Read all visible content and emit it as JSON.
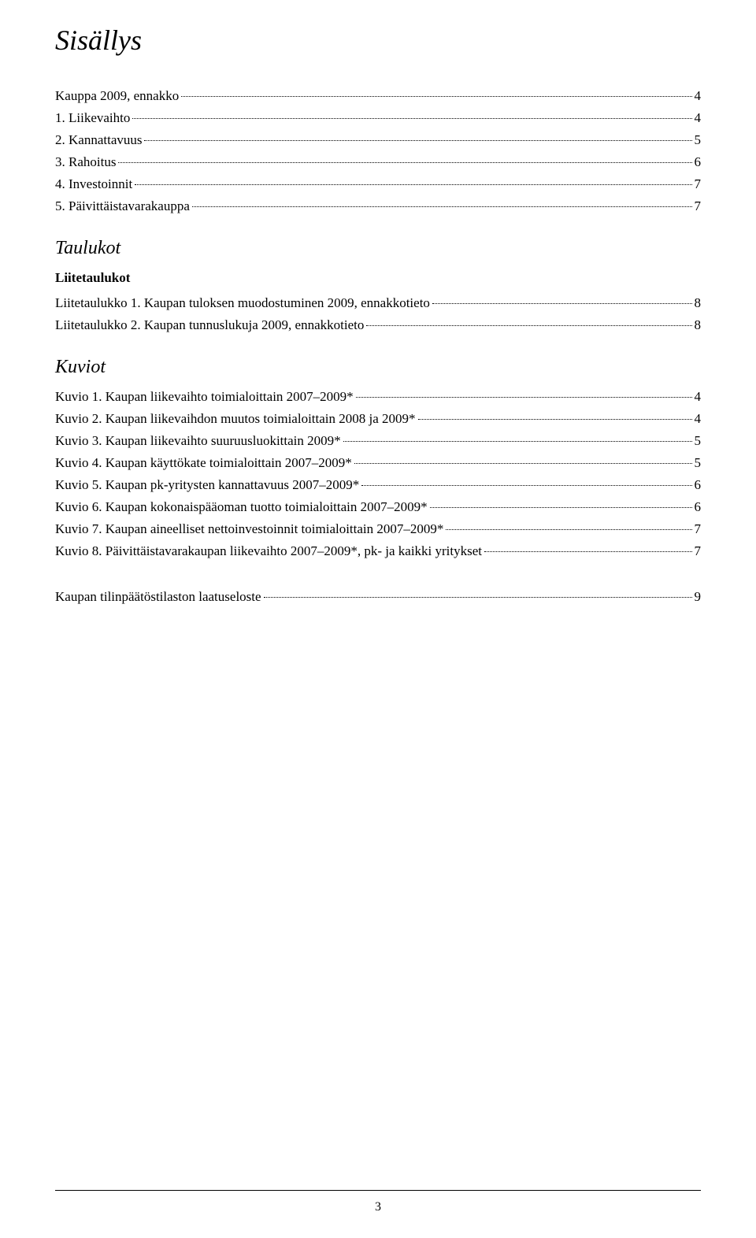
{
  "title": "Sisällys",
  "main_entries": [
    {
      "label": "Kauppa 2009, ennakko",
      "page": "4"
    },
    {
      "label": "1. Liikevaihto",
      "page": "4"
    },
    {
      "label": "2. Kannattavuus",
      "page": "5"
    },
    {
      "label": "3. Rahoitus",
      "page": "6"
    },
    {
      "label": "4. Investoinnit",
      "page": "7"
    },
    {
      "label": "5. Päivittäistavarakauppa",
      "page": "7"
    }
  ],
  "taulukot": {
    "heading": "Taulukot",
    "sub_heading": "Liitetaulukot",
    "entries": [
      {
        "label": "Liitetaulukko 1. Kaupan tuloksen muodostuminen 2009, ennakkotieto",
        "page": "8"
      },
      {
        "label": "Liitetaulukko 2. Kaupan tunnuslukuja 2009, ennakkotieto",
        "page": "8"
      }
    ]
  },
  "kuviot": {
    "heading": "Kuviot",
    "entries": [
      {
        "label": "Kuvio 1. Kaupan liikevaihto toimialoittain 2007–2009*",
        "page": "4"
      },
      {
        "label": "Kuvio 2. Kaupan liikevaihdon muutos toimialoittain 2008 ja 2009*",
        "page": "4"
      },
      {
        "label": "Kuvio 3. Kaupan liikevaihto suuruusluokittain 2009*",
        "page": "5"
      },
      {
        "label": "Kuvio 4. Kaupan käyttökate toimialoittain 2007–2009*",
        "page": "5"
      },
      {
        "label": "Kuvio 5. Kaupan pk-yritysten kannattavuus 2007–2009*",
        "page": "6"
      },
      {
        "label": "Kuvio 6. Kaupan kokonaispääoman tuotto toimialoittain 2007–2009*",
        "page": "6"
      },
      {
        "label": "Kuvio 7. Kaupan aineelliset nettoinvestoinnit toimialoittain 2007–2009*",
        "page": "7"
      },
      {
        "label": "Kuvio 8. Päivittäistavarakaupan liikevaihto 2007–2009*, pk- ja kaikki yritykset",
        "page": "7"
      }
    ]
  },
  "bottom_entry": {
    "label": "Kaupan tilinpäätöstilaston laatuseloste",
    "page": "9"
  },
  "page_number": "3"
}
